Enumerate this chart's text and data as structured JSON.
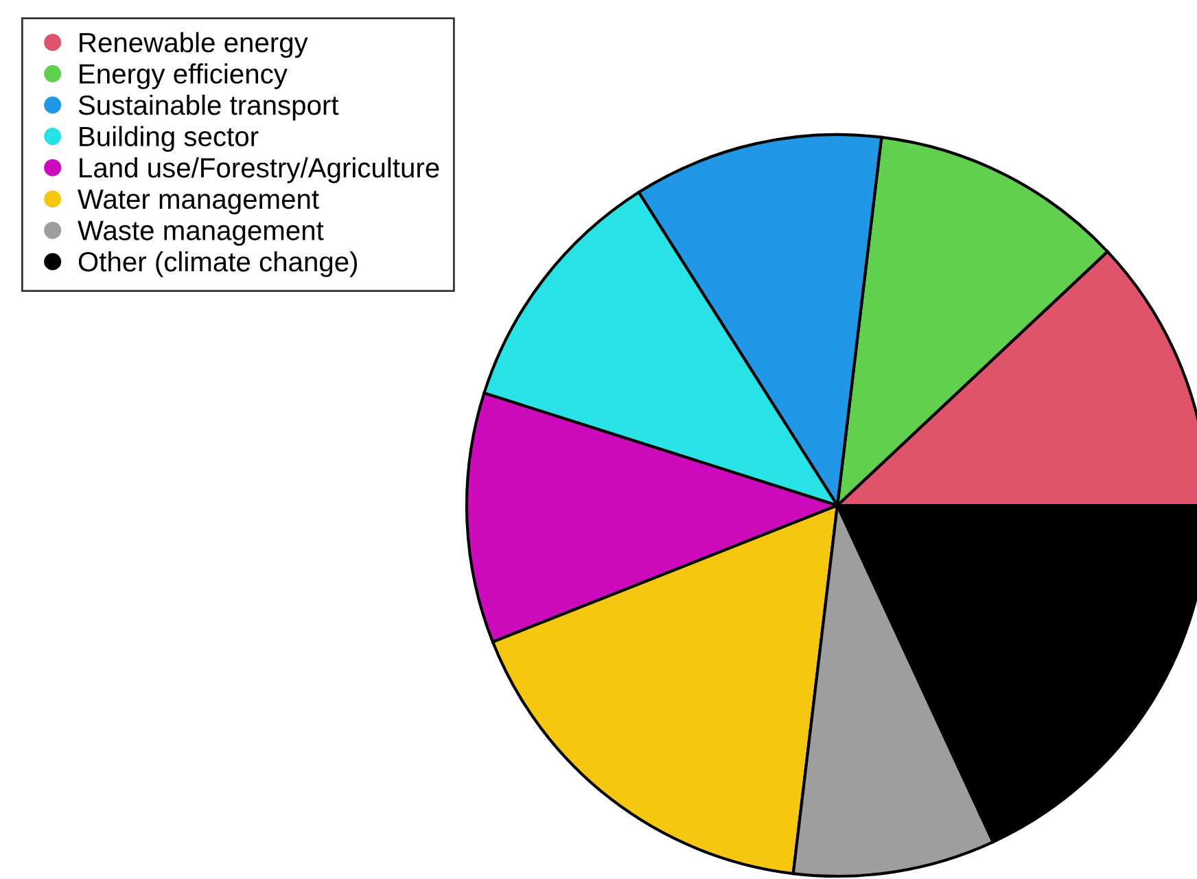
{
  "chart_data": {
    "type": "pie",
    "categories": [
      "Renewable energy",
      "Energy efficiency",
      "Sustainable transport",
      "Building sector",
      "Land use/Forestry/Agriculture",
      "Water management",
      "Waste management",
      "Other (climate change)"
    ],
    "values": [
      12.0,
      11.1,
      10.9,
      11.1,
      10.9,
      17.1,
      8.8,
      18.1
    ],
    "colors": [
      "#df536b",
      "#61d04f",
      "#2297e6",
      "#28e2e5",
      "#cd0bbc",
      "#f5c710",
      "#9e9e9e",
      "#000000"
    ],
    "legend": "top left"
  }
}
